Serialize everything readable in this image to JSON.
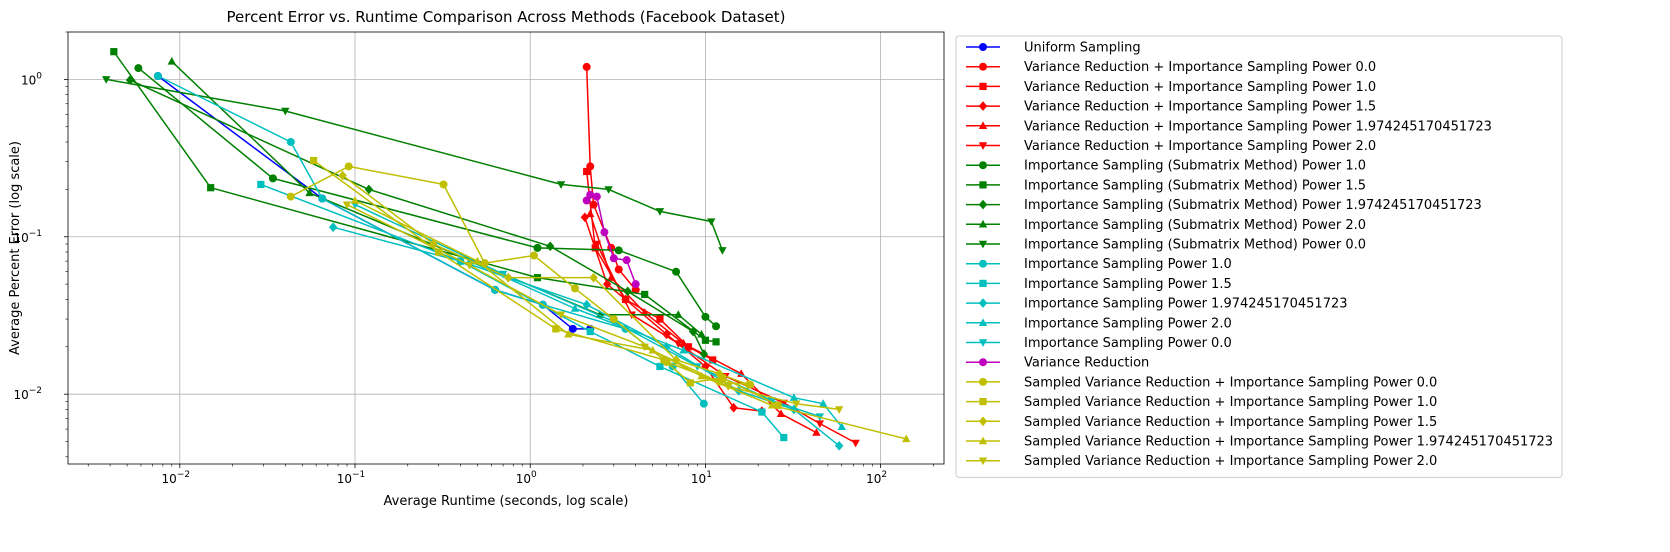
{
  "chart_data": {
    "type": "line",
    "title": "Percent Error vs. Runtime Comparison Across Methods (Facebook Dataset)",
    "xlabel": "Average Runtime (seconds, log scale)",
    "ylabel": "Average Percent Error (log scale)",
    "x_scale": "log",
    "y_scale": "log",
    "xlim": [
      0.0023,
      230
    ],
    "ylim": [
      0.0036,
      2.0
    ],
    "x_ticks": [
      {
        "value": 0.01,
        "base": "10",
        "exp": "−2"
      },
      {
        "value": 0.1,
        "base": "10",
        "exp": "−1"
      },
      {
        "value": 1,
        "base": "10",
        "exp": "0"
      },
      {
        "value": 10,
        "base": "10",
        "exp": "1"
      },
      {
        "value": 100,
        "base": "10",
        "exp": "2"
      }
    ],
    "y_ticks": [
      {
        "value": 0.01,
        "base": "10",
        "exp": "−2"
      },
      {
        "value": 0.1,
        "base": "10",
        "exp": "−1"
      },
      {
        "value": 1,
        "base": "10",
        "exp": "0"
      }
    ],
    "grid": true,
    "legend_position": "outside-right",
    "series": [
      {
        "name": "Uniform Sampling",
        "color": "#0000ff",
        "marker": "circle",
        "points": [
          [
            0.0075,
            1.05
          ],
          [
            0.065,
            0.175
          ],
          [
            0.63,
            0.046
          ],
          [
            1.18,
            0.037
          ],
          [
            1.75,
            0.026
          ],
          [
            2.2,
            0.026
          ]
        ]
      },
      {
        "name": "Variance Reduction + Importance Sampling Power 0.0",
        "color": "#ff0000",
        "marker": "circle",
        "points": [
          [
            2.1,
            1.2
          ],
          [
            2.2,
            0.28
          ],
          [
            2.3,
            0.16
          ],
          [
            2.9,
            0.085
          ],
          [
            3.2,
            0.062
          ],
          [
            4.0,
            0.046
          ]
        ]
      },
      {
        "name": "Variance Reduction + Importance Sampling Power 1.0",
        "color": "#ff0000",
        "marker": "square",
        "points": [
          [
            2.1,
            0.26
          ],
          [
            2.35,
            0.085
          ],
          [
            3.5,
            0.04
          ],
          [
            5.5,
            0.03
          ],
          [
            8.0,
            0.02
          ],
          [
            11.0,
            0.0165
          ]
        ]
      },
      {
        "name": "Variance Reduction + Importance Sampling Power 1.5",
        "color": "#ff0000",
        "marker": "diamond",
        "points": [
          [
            2.05,
            0.133
          ],
          [
            2.75,
            0.05
          ],
          [
            3.5,
            0.04
          ],
          [
            6.0,
            0.024
          ],
          [
            10.0,
            0.015
          ],
          [
            14.5,
            0.0082
          ],
          [
            21.0,
            0.0078
          ]
        ]
      },
      {
        "name": "Variance Reduction + Importance Sampling Power 1.974245170451723",
        "color": "#ff0000",
        "marker": "triangle-up",
        "points": [
          [
            2.2,
            0.14
          ],
          [
            2.9,
            0.055
          ],
          [
            4.5,
            0.033
          ],
          [
            7.5,
            0.021
          ],
          [
            16.0,
            0.0135
          ],
          [
            27.0,
            0.0075
          ],
          [
            43.0,
            0.0057
          ]
        ]
      },
      {
        "name": "Variance Reduction + Importance Sampling Power 2.0",
        "color": "#ff0000",
        "marker": "triangle-down",
        "points": [
          [
            2.4,
            0.09
          ],
          [
            3.8,
            0.032
          ],
          [
            7.0,
            0.021
          ],
          [
            13.0,
            0.013
          ],
          [
            28.0,
            0.0088
          ],
          [
            45.0,
            0.0065
          ],
          [
            72.0,
            0.0049
          ]
        ]
      },
      {
        "name": "Importance Sampling (Submatrix Method) Power 1.0",
        "color": "#008000",
        "marker": "circle",
        "points": [
          [
            0.0058,
            1.18
          ],
          [
            0.034,
            0.235
          ],
          [
            1.1,
            0.085
          ],
          [
            3.2,
            0.082
          ],
          [
            6.8,
            0.06
          ],
          [
            10.0,
            0.031
          ],
          [
            11.5,
            0.027
          ]
        ]
      },
      {
        "name": "Importance Sampling (Submatrix Method) Power 1.5",
        "color": "#008000",
        "marker": "square",
        "points": [
          [
            0.0042,
            1.5
          ],
          [
            0.015,
            0.205
          ],
          [
            1.1,
            0.055
          ],
          [
            4.5,
            0.043
          ],
          [
            10.0,
            0.022
          ],
          [
            11.5,
            0.0215
          ]
        ]
      },
      {
        "name": "Importance Sampling (Submatrix Method) Power 1.974245170451723",
        "color": "#008000",
        "marker": "diamond",
        "points": [
          [
            0.0052,
            0.99
          ],
          [
            0.12,
            0.2
          ],
          [
            1.3,
            0.087
          ],
          [
            3.6,
            0.045
          ],
          [
            8.5,
            0.025
          ],
          [
            9.8,
            0.018
          ]
        ]
      },
      {
        "name": "Importance Sampling (Submatrix Method) Power 2.0",
        "color": "#008000",
        "marker": "triangle-up",
        "points": [
          [
            0.009,
            1.3
          ],
          [
            0.055,
            0.19
          ],
          [
            2.5,
            0.032
          ],
          [
            7.0,
            0.032
          ],
          [
            9.5,
            0.024
          ]
        ]
      },
      {
        "name": "Importance Sampling (Submatrix Method) Power 0.0",
        "color": "#008000",
        "marker": "triangle-down",
        "points": [
          [
            0.0038,
            1.0
          ],
          [
            0.04,
            0.63
          ],
          [
            1.5,
            0.215
          ],
          [
            2.8,
            0.2
          ],
          [
            5.5,
            0.145
          ],
          [
            10.8,
            0.125
          ],
          [
            12.5,
            0.082
          ]
        ]
      },
      {
        "name": "Importance Sampling Power 1.0",
        "color": "#00bfbf",
        "marker": "circle",
        "points": [
          [
            0.0075,
            1.05
          ],
          [
            0.043,
            0.4
          ],
          [
            0.065,
            0.175
          ],
          [
            0.63,
            0.046
          ],
          [
            1.18,
            0.037
          ],
          [
            3.5,
            0.026
          ],
          [
            6.5,
            0.015
          ],
          [
            9.8,
            0.0087
          ]
        ]
      },
      {
        "name": "Importance Sampling Power 1.5",
        "color": "#00bfbf",
        "marker": "square",
        "points": [
          [
            0.029,
            0.215
          ],
          [
            0.4,
            0.07
          ],
          [
            2.2,
            0.025
          ],
          [
            5.5,
            0.015
          ],
          [
            21.0,
            0.0077
          ],
          [
            28.0,
            0.0053
          ]
        ]
      },
      {
        "name": "Importance Sampling Power 1.974245170451723",
        "color": "#00bfbf",
        "marker": "diamond",
        "points": [
          [
            0.075,
            0.115
          ],
          [
            0.4,
            0.07
          ],
          [
            2.1,
            0.037
          ],
          [
            6.0,
            0.02
          ],
          [
            15.5,
            0.0105
          ],
          [
            32.0,
            0.008
          ],
          [
            58.0,
            0.0047
          ]
        ]
      },
      {
        "name": "Importance Sampling Power 2.0",
        "color": "#00bfbf",
        "marker": "triangle-up",
        "points": [
          [
            0.45,
            0.07
          ],
          [
            1.8,
            0.035
          ],
          [
            7.5,
            0.019
          ],
          [
            32.0,
            0.0095
          ],
          [
            47.0,
            0.0087
          ],
          [
            60.0,
            0.0062
          ]
        ]
      },
      {
        "name": "Importance Sampling Power 0.0",
        "color": "#00bfbf",
        "marker": "triangle-down",
        "points": [
          [
            0.1,
            0.16
          ],
          [
            0.7,
            0.058
          ],
          [
            3.0,
            0.029
          ],
          [
            9.0,
            0.015
          ],
          [
            24.0,
            0.0091
          ],
          [
            45.0,
            0.0072
          ]
        ]
      },
      {
        "name": "Variance Reduction",
        "color": "#bf00bf",
        "marker": "circle",
        "points": [
          [
            2.1,
            0.17
          ],
          [
            2.2,
            0.185
          ],
          [
            2.4,
            0.18
          ],
          [
            2.65,
            0.107
          ],
          [
            3.0,
            0.073
          ],
          [
            3.55,
            0.071
          ],
          [
            4.0,
            0.05
          ]
        ]
      },
      {
        "name": "Sampled Variance Reduction + Importance Sampling Power 0.0",
        "color": "#bfbf00",
        "marker": "circle",
        "points": [
          [
            0.043,
            0.18
          ],
          [
            0.092,
            0.28
          ],
          [
            0.32,
            0.215
          ],
          [
            0.55,
            0.068
          ],
          [
            1.05,
            0.076
          ],
          [
            1.8,
            0.047
          ],
          [
            3.0,
            0.03
          ],
          [
            6.0,
            0.016
          ],
          [
            12.0,
            0.012
          ],
          [
            18.0,
            0.0115
          ]
        ]
      },
      {
        "name": "Sampled Variance Reduction + Importance Sampling Power 1.0",
        "color": "#bfbf00",
        "marker": "square",
        "points": [
          [
            0.058,
            0.305
          ],
          [
            0.3,
            0.08
          ],
          [
            1.4,
            0.026
          ],
          [
            5.8,
            0.0165
          ],
          [
            8.2,
            0.0118
          ],
          [
            12.5,
            0.0127
          ],
          [
            26.0,
            0.0085
          ]
        ]
      },
      {
        "name": "Sampled Variance Reduction + Importance Sampling Power 1.5",
        "color": "#bfbf00",
        "marker": "diamond",
        "points": [
          [
            0.085,
            0.245
          ],
          [
            0.28,
            0.09
          ],
          [
            0.75,
            0.055
          ],
          [
            2.3,
            0.055
          ],
          [
            6.8,
            0.0165
          ],
          [
            12.0,
            0.0135
          ],
          [
            17.5,
            0.0115
          ]
        ]
      },
      {
        "name": "Sampled Variance Reduction + Importance Sampling Power 1.974245170451723",
        "color": "#bfbf00",
        "marker": "triangle-up",
        "points": [
          [
            0.1,
            0.17
          ],
          [
            0.5,
            0.07
          ],
          [
            1.65,
            0.024
          ],
          [
            5.0,
            0.019
          ],
          [
            9.5,
            0.013
          ],
          [
            24.0,
            0.0085
          ],
          [
            140.0,
            0.0052
          ]
        ]
      },
      {
        "name": "Sampled Variance Reduction + Importance Sampling Power 2.0",
        "color": "#bfbf00",
        "marker": "triangle-down",
        "points": [
          [
            0.09,
            0.16
          ],
          [
            0.45,
            0.066
          ],
          [
            1.5,
            0.032
          ],
          [
            4.5,
            0.02
          ],
          [
            13.5,
            0.0112
          ],
          [
            33.0,
            0.0087
          ],
          [
            58.0,
            0.008
          ]
        ]
      }
    ]
  }
}
